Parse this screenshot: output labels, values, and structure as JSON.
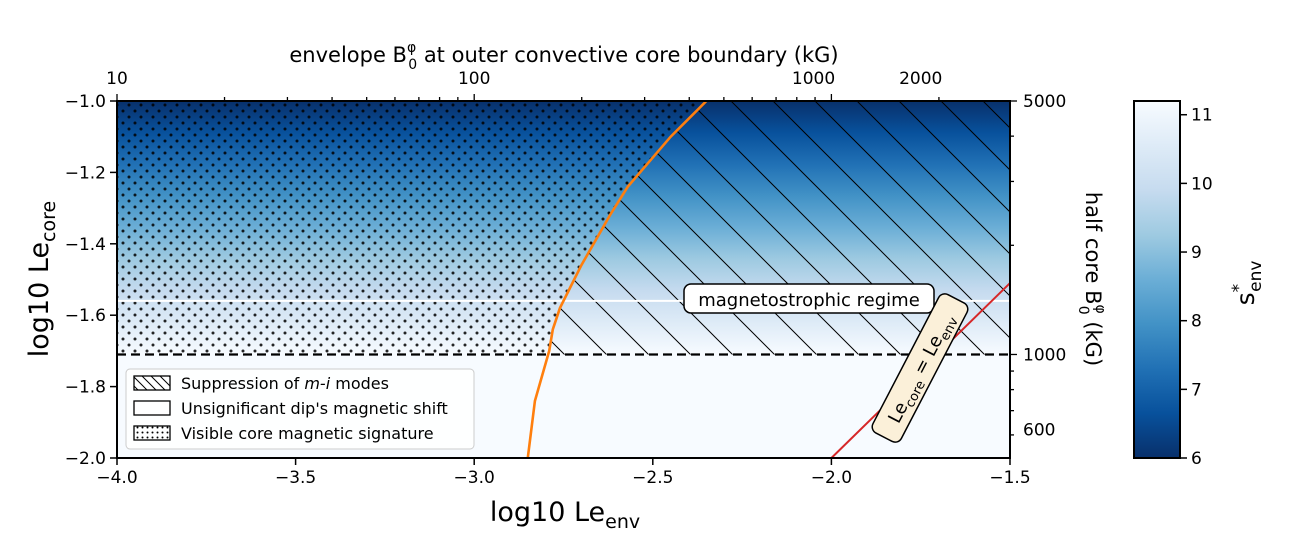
{
  "chart_data": {
    "type": "heatmap",
    "x": {
      "label": "log10 Le",
      "label_sub": "env",
      "lim": [
        -4.0,
        -1.5
      ],
      "ticks": [
        -4.0,
        -3.5,
        -3.0,
        -2.5,
        -2.0,
        -1.5
      ],
      "tick_labels": [
        "−4.0",
        "−3.5",
        "−3.0",
        "−2.5",
        "−2.0",
        "−1.5"
      ]
    },
    "y": {
      "label": "log10 Le",
      "label_sub": "core",
      "lim": [
        -2.0,
        -1.0
      ],
      "ticks": [
        -2.0,
        -1.8,
        -1.6,
        -1.4,
        -1.2,
        -1.0
      ],
      "tick_labels": [
        "−2.0",
        "−1.8",
        "−1.6",
        "−1.4",
        "−1.2",
        "−1.0"
      ]
    },
    "top_axis": {
      "label_pre": "envelope B",
      "label_sup": "φ",
      "label_sub": "0",
      "label_post": " at outer convective core boundary (kG)",
      "scale": "log",
      "major": [
        {
          "value": 10,
          "x": -4.0,
          "label": "10"
        },
        {
          "value": 100,
          "x": -3.0,
          "label": "100"
        },
        {
          "value": 1000,
          "x": -2.05,
          "label": "1000"
        },
        {
          "value": 2000,
          "x": -1.75,
          "label": "2000"
        }
      ]
    },
    "right_axis": {
      "label_pre": "half core B",
      "label_sup": "φ",
      "label_sub": "0",
      "label_post": " (kG)",
      "labeled": [
        {
          "value": 5000,
          "y": -1.0,
          "label": "5000"
        },
        {
          "value": 1000,
          "y": -1.71,
          "label": "1000"
        },
        {
          "value": 600,
          "y": -1.92,
          "label": "600"
        }
      ]
    },
    "colorbar": {
      "label": "s",
      "label_sup": "*",
      "label_sub": "env",
      "range": [
        6,
        11.2
      ],
      "ticks": [
        6,
        7,
        8,
        9,
        10,
        11
      ],
      "colors": [
        "#08306b",
        "#08519c",
        "#2171b5",
        "#4292c6",
        "#6baed6",
        "#9ecae1",
        "#c6dbef",
        "#deebf7",
        "#f7fbff"
      ]
    },
    "field_note": "colour varies with log10 Le_core: darkest at −1.0, lightest at −1.71 and below",
    "boundary_curve": {
      "color": "#ff7f0e",
      "points": [
        [
          -2.85,
          -2.0
        ],
        [
          -2.84,
          -1.92
        ],
        [
          -2.83,
          -1.84
        ],
        [
          -2.81,
          -1.77
        ],
        [
          -2.79,
          -1.7
        ],
        [
          -2.78,
          -1.64
        ],
        [
          -2.76,
          -1.58
        ],
        [
          -2.73,
          -1.52
        ],
        [
          -2.7,
          -1.46
        ],
        [
          -2.66,
          -1.39
        ],
        [
          -2.62,
          -1.32
        ],
        [
          -2.57,
          -1.24
        ],
        [
          -2.51,
          -1.17
        ],
        [
          -2.45,
          -1.1
        ],
        [
          -2.39,
          -1.04
        ],
        [
          -2.35,
          -1.0
        ]
      ]
    },
    "horizontal_lines": [
      {
        "y": -1.56,
        "color": "#ffffff",
        "style": "solid"
      },
      {
        "y": -1.71,
        "color": "#000000",
        "style": "dashed"
      }
    ],
    "diagonal_line": {
      "points": [
        [
          -2.0,
          -2.0
        ],
        [
          -1.5,
          -1.51
        ]
      ],
      "color": "#d62728",
      "label_pre": "Le",
      "label_sub1": "core",
      "label_mid": " = Le",
      "label_sub2": "env"
    },
    "region_label": "magnetostrophic regime",
    "legend": {
      "position": "lower left",
      "items": [
        {
          "pattern": "hatch",
          "label_pre": "Suppression of ",
          "label_em": "m-i",
          "label_post": " modes"
        },
        {
          "pattern": "none",
          "label_pre": "Unsignificant dip's magnetic shift",
          "label_em": "",
          "label_post": ""
        },
        {
          "pattern": "dots",
          "label_pre": "Visible core magnetic signature",
          "label_em": "",
          "label_post": ""
        }
      ]
    }
  }
}
